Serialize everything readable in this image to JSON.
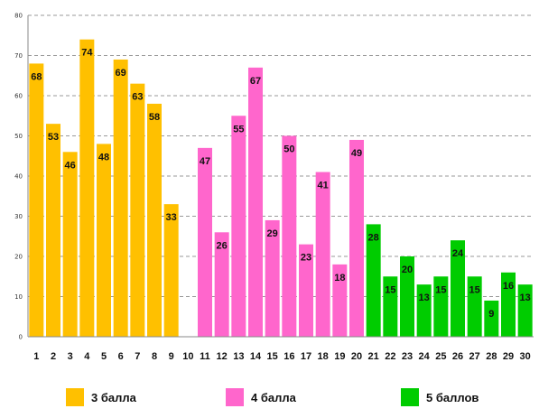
{
  "chart_data": {
    "type": "bar",
    "categories": [
      "1",
      "2",
      "3",
      "4",
      "5",
      "6",
      "7",
      "8",
      "9",
      "10",
      "11",
      "12",
      "13",
      "14",
      "15",
      "16",
      "17",
      "18",
      "19",
      "20",
      "21",
      "22",
      "23",
      "24",
      "25",
      "26",
      "27",
      "28",
      "29",
      "30"
    ],
    "series": [
      {
        "name": "3 балла",
        "color": "#FFC000",
        "values": [
          68,
          53,
          46,
          74,
          48,
          69,
          63,
          58,
          33,
          null,
          null,
          null,
          null,
          null,
          null,
          null,
          null,
          null,
          null,
          null,
          null,
          null,
          null,
          null,
          null,
          null,
          null,
          null,
          null,
          null
        ]
      },
      {
        "name": "4 балла",
        "color": "#FF66CC",
        "values": [
          null,
          null,
          null,
          null,
          null,
          null,
          null,
          null,
          null,
          null,
          47,
          26,
          55,
          67,
          29,
          50,
          23,
          41,
          18,
          49,
          null,
          null,
          null,
          null,
          null,
          null,
          null,
          null,
          null,
          null
        ]
      },
      {
        "name": "5 баллов",
        "color": "#00CC00",
        "values": [
          null,
          null,
          null,
          null,
          null,
          null,
          null,
          null,
          null,
          null,
          null,
          null,
          null,
          null,
          null,
          null,
          null,
          null,
          null,
          null,
          28,
          15,
          20,
          13,
          15,
          24,
          15,
          9,
          16,
          13
        ]
      }
    ],
    "ylim": [
      0,
      80
    ],
    "yticks": [
      0,
      10,
      20,
      30,
      40,
      50,
      60,
      70,
      80
    ],
    "grid": true,
    "legend_placement": "bottom",
    "title": "",
    "xlabel": "",
    "ylabel": ""
  }
}
